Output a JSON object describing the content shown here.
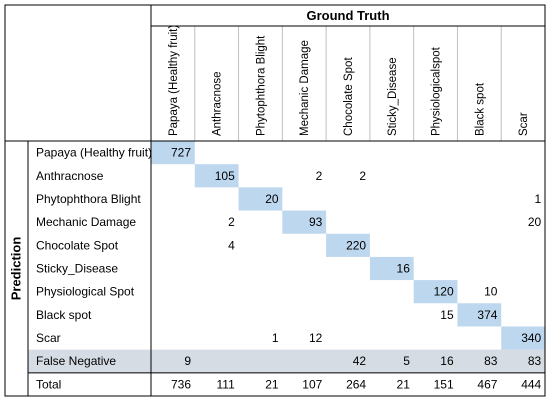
{
  "chart_data": {
    "type": "table",
    "column_header": "Ground Truth",
    "row_header": "Prediction",
    "columns": [
      "Papaya (Healthy fruit)",
      "Anthracnose",
      "Phytophthora Blight",
      "Mechanic Damage",
      "Chocolate Spot",
      "Sticky_Disease",
      "Physiologicalspot",
      "Black spot",
      "Scar"
    ],
    "rows": [
      {
        "label": "Papaya (Healthy fruit)",
        "values": [
          727,
          null,
          null,
          null,
          null,
          null,
          null,
          null,
          null
        ]
      },
      {
        "label": "Anthracnose",
        "values": [
          null,
          105,
          null,
          2,
          2,
          null,
          null,
          null,
          null
        ]
      },
      {
        "label": "Phytophthora Blight",
        "values": [
          null,
          null,
          20,
          null,
          null,
          null,
          null,
          null,
          1
        ]
      },
      {
        "label": "Mechanic Damage",
        "values": [
          null,
          2,
          null,
          93,
          null,
          null,
          null,
          null,
          20
        ]
      },
      {
        "label": "Chocolate Spot",
        "values": [
          null,
          4,
          null,
          null,
          220,
          null,
          null,
          null,
          null
        ]
      },
      {
        "label": "Sticky_Disease",
        "values": [
          null,
          null,
          null,
          null,
          null,
          16,
          null,
          null,
          null
        ]
      },
      {
        "label": "Physiological Spot",
        "values": [
          null,
          null,
          null,
          null,
          null,
          null,
          120,
          10,
          null
        ]
      },
      {
        "label": "Black spot",
        "values": [
          null,
          null,
          null,
          null,
          null,
          null,
          15,
          374,
          null
        ]
      },
      {
        "label": "Scar",
        "values": [
          null,
          null,
          1,
          12,
          null,
          null,
          null,
          null,
          340
        ]
      },
      {
        "label": "False Negative",
        "values": [
          9,
          null,
          null,
          null,
          42,
          5,
          16,
          83,
          83
        ]
      },
      {
        "label": "Total",
        "values": [
          736,
          111,
          21,
          107,
          264,
          21,
          151,
          467,
          444
        ]
      }
    ],
    "highlight_row": "False Negative",
    "colors": {
      "diagonal": "#bdd7ee",
      "false_negative_band": "#d6dce4",
      "border": "#000000",
      "grid": "#bfbfbf"
    }
  }
}
